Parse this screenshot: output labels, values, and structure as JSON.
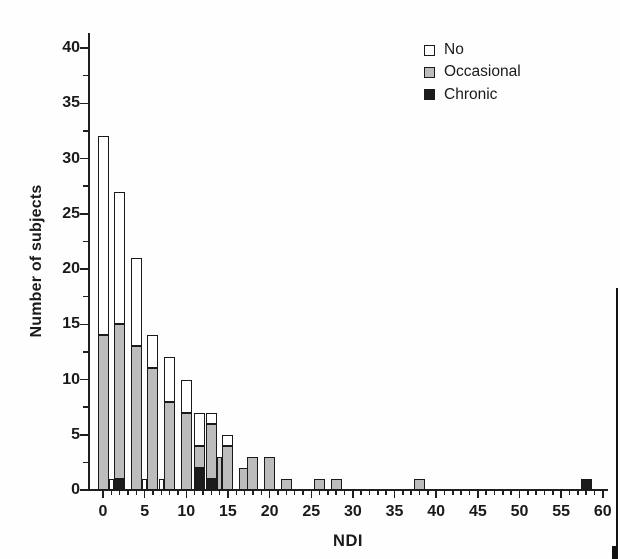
{
  "figure": {
    "background": "#fefefe",
    "axis_color": "#1f1f1f",
    "text_color": "#1a1a1a"
  },
  "chart_data": {
    "type": "bar",
    "stacked": true,
    "title": "",
    "xlabel": "NDI",
    "ylabel": "Number of subjects",
    "xlim": [
      -1.8,
      60.6
    ],
    "ylim": [
      0,
      41.5
    ],
    "grid": false,
    "x_major_ticks": [
      0,
      5,
      10,
      15,
      20,
      25,
      30,
      35,
      40,
      45,
      50,
      55,
      60
    ],
    "x_minor_tick_step": 1,
    "y_major_ticks": [
      0,
      5,
      10,
      15,
      20,
      25,
      30,
      35,
      40
    ],
    "y_minor_ticks": [
      2.5,
      7.5,
      12.5,
      17.5,
      22.5,
      27.5,
      32.5,
      37.5
    ],
    "legend": {
      "position": "upper-right",
      "entries": [
        {
          "label": "No",
          "color": "#ffffff"
        },
        {
          "label": "Occasional",
          "color": "#bcbcbc"
        },
        {
          "label": "Chronic",
          "color": "#1c1c1c"
        }
      ]
    },
    "x": [
      0,
      1,
      2,
      4,
      5,
      6,
      7,
      8,
      10,
      12,
      13,
      14,
      15,
      17,
      18,
      20,
      22,
      26,
      28,
      38,
      58
    ],
    "series": [
      {
        "name": "No",
        "color": "#ffffff",
        "values": [
          18,
          1,
          12,
          8,
          1,
          3,
          1,
          4,
          3,
          3,
          1,
          0,
          1,
          0,
          0,
          0,
          0,
          0,
          0,
          0,
          0
        ]
      },
      {
        "name": "Occasional",
        "color": "#bcbcbc",
        "values": [
          14,
          0,
          14,
          13,
          0,
          11,
          0,
          8,
          7,
          2,
          5,
          3,
          4,
          2,
          3,
          3,
          1,
          1,
          1,
          1,
          0
        ]
      },
      {
        "name": "Chronic",
        "color": "#1c1c1c",
        "values": [
          0,
          0,
          1,
          0,
          0,
          0,
          0,
          0,
          0,
          2,
          1,
          0,
          0,
          0,
          0,
          0,
          0,
          0,
          0,
          0,
          1
        ]
      }
    ],
    "bar_totals": [
      32,
      1,
      27,
      21,
      1,
      14,
      1,
      12,
      10,
      7,
      7,
      3,
      5,
      2,
      3,
      3,
      1,
      1,
      1,
      1,
      1
    ],
    "narrow_bars": [
      1,
      5,
      7,
      14
    ],
    "bar_pixel_offsets": {
      "12": -3
    }
  }
}
